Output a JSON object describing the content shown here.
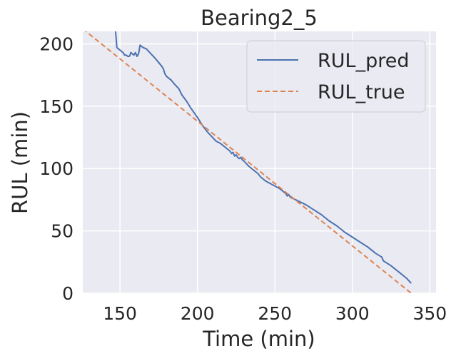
{
  "chart_data": {
    "type": "line",
    "title": "Bearing2_5",
    "xlabel": "Time (min)",
    "ylabel": "RUL (min)",
    "xlim": [
      126,
      354
    ],
    "ylim": [
      0,
      210
    ],
    "xticks": [
      150,
      200,
      250,
      300,
      350
    ],
    "yticks": [
      0,
      50,
      100,
      150,
      200
    ],
    "grid": true,
    "legend_position": "top-right",
    "series": [
      {
        "name": "RUL_pred",
        "style": "solid",
        "color": "#4c72b0",
        "x": [
          147,
          147.5,
          148,
          150,
          152,
          153,
          154,
          155,
          156,
          156.5,
          157,
          158,
          159,
          160,
          161,
          162,
          163,
          165,
          167,
          170,
          173,
          175,
          177,
          178,
          179,
          180,
          183,
          185,
          188,
          190,
          193,
          196,
          200,
          203,
          206,
          209,
          212,
          215,
          218,
          220,
          221,
          222,
          223,
          224,
          225,
          226,
          227,
          228,
          229,
          230,
          233,
          236,
          239,
          241,
          244,
          247,
          250,
          253,
          256,
          257,
          258,
          259,
          260,
          265,
          270,
          275,
          280,
          285,
          290,
          295,
          300,
          305,
          310,
          315,
          319,
          320,
          325,
          330,
          335,
          338
        ],
        "y": [
          212,
          205,
          197,
          195,
          193,
          191,
          191,
          190,
          190,
          191,
          193,
          192,
          191,
          193,
          190,
          192,
          199,
          197,
          196,
          192,
          188,
          185,
          182,
          180,
          176,
          174,
          171,
          168,
          164,
          159,
          154,
          148,
          141,
          135,
          130,
          126,
          122,
          120,
          117,
          115,
          114,
          112,
          113,
          110,
          111,
          109,
          108,
          109,
          107,
          106,
          102,
          99,
          96,
          93,
          90,
          88,
          86,
          84,
          81,
          80,
          78,
          79,
          77,
          74,
          71,
          67,
          63,
          58,
          54,
          49,
          45,
          41,
          37,
          32,
          29,
          26,
          22,
          17,
          12,
          8
        ]
      },
      {
        "name": "RUL_true",
        "style": "dashed",
        "color": "#dd8452",
        "x": [
          126,
          338
        ],
        "y": [
          212,
          0
        ]
      }
    ]
  }
}
